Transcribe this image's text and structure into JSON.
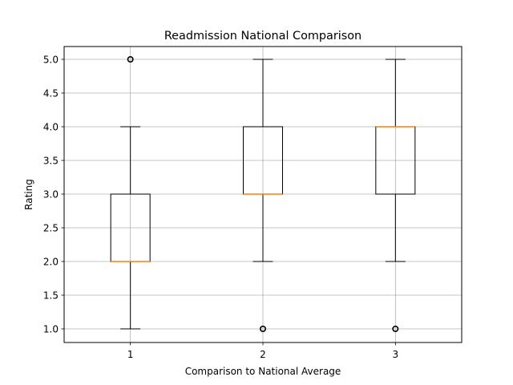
{
  "chart_data": {
    "type": "box",
    "title": "Readmission National Comparison",
    "xlabel": "Comparison to National Average",
    "ylabel": "Rating",
    "ylim": [
      0.8,
      5.2
    ],
    "grid": true,
    "categories": [
      "1",
      "2",
      "3"
    ],
    "yticks": [
      1.0,
      1.5,
      2.0,
      2.5,
      3.0,
      3.5,
      4.0,
      4.5,
      5.0
    ],
    "ytick_labels": [
      "1.0",
      "1.5",
      "2.0",
      "2.5",
      "3.0",
      "3.5",
      "4.0",
      "4.5",
      "5.0"
    ],
    "boxes": [
      {
        "category": "1",
        "whisker_low": 1.0,
        "q1": 2.0,
        "median": 2.0,
        "q3": 3.0,
        "whisker_high": 4.0,
        "outliers": [
          5.0
        ]
      },
      {
        "category": "2",
        "whisker_low": 2.0,
        "q1": 3.0,
        "median": 3.0,
        "q3": 4.0,
        "whisker_high": 5.0,
        "outliers": [
          1.0
        ]
      },
      {
        "category": "3",
        "whisker_low": 2.0,
        "q1": 3.0,
        "median": 4.0,
        "q3": 4.0,
        "whisker_high": 5.0,
        "outliers": [
          1.0
        ]
      }
    ],
    "colors": {
      "box": "#000000",
      "median": "#ff7f0e",
      "grid": "#b0b0b0",
      "outlier": "#000000"
    }
  }
}
